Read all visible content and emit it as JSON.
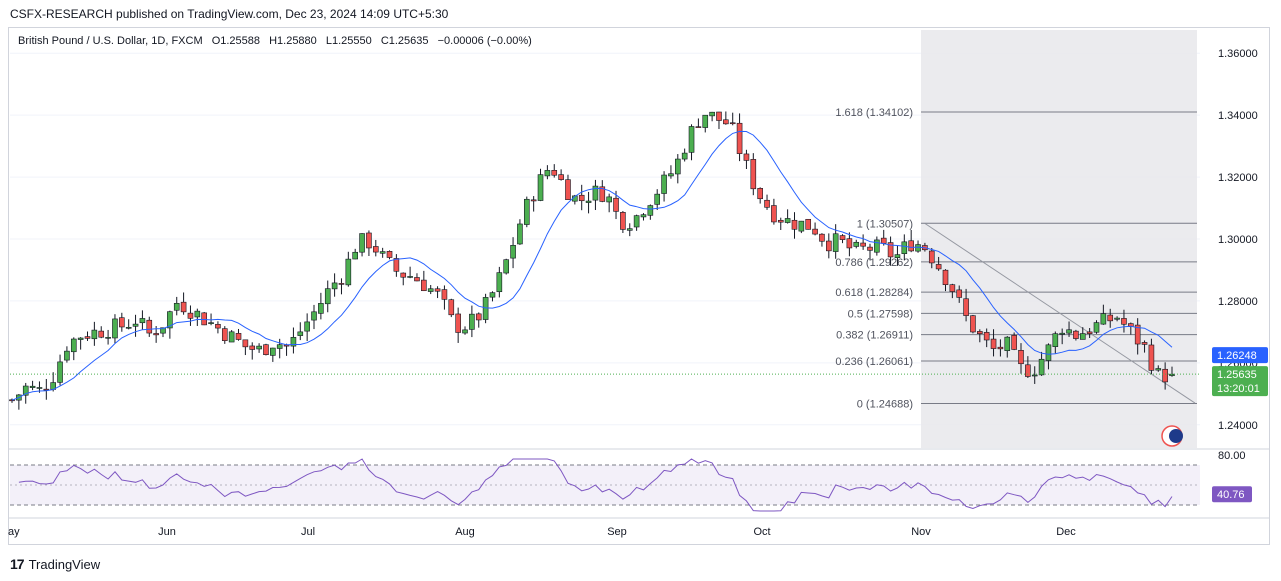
{
  "header": {
    "publisher": "CSFX-RESEARCH published on TradingView.com, Dec 23, 2024 14:09 UTC+5:30"
  },
  "legend": {
    "symbol": "British Pound / U.S. Dollar, 1D, FXCM",
    "open": "O1.25588",
    "high": "H1.25880",
    "low": "L1.25550",
    "close": "C1.25635",
    "change": "−0.00006 (−0.00%)"
  },
  "footer": {
    "brand": "TradingView"
  },
  "colors": {
    "up": "#26a69a",
    "up_body": "#4caf50",
    "down": "#ef5350",
    "ma": "#2962ff",
    "rsi": "#7e57c2",
    "fib": "#787b86",
    "current_price_bg": "#4caf50",
    "ma_tag_bg": "#2962ff"
  },
  "chart_data": [
    {
      "type": "candlestick",
      "ylim": [
        1.2325,
        1.3675
      ],
      "y_ticks": [
        "1.36000",
        "1.34000",
        "1.32000",
        "1.30000",
        "1.28000",
        "1.26000",
        "1.24000"
      ],
      "x_ticks": [
        "ay",
        "Jun",
        "Jul",
        "Aug",
        "Sep",
        "Oct",
        "Nov",
        "Dec"
      ],
      "close_path": [
        1.248,
        1.252,
        1.251,
        1.256,
        1.266,
        1.269,
        1.27,
        1.271,
        1.272,
        1.274,
        1.269,
        1.273,
        1.28,
        1.277,
        1.274,
        1.271,
        1.268,
        1.265,
        1.264,
        1.267,
        1.265,
        1.271,
        1.277,
        1.284,
        1.289,
        1.299,
        1.299,
        1.293,
        1.289,
        1.288,
        1.285,
        1.281,
        1.272,
        1.272,
        1.276,
        1.284,
        1.295,
        1.308,
        1.317,
        1.324,
        1.317,
        1.312,
        1.315,
        1.315,
        1.306,
        1.306,
        1.312,
        1.317,
        1.323,
        1.333,
        1.341,
        1.339,
        1.337,
        1.325,
        1.315,
        1.309,
        1.306,
        1.305,
        1.304,
        1.299,
        1.299,
        1.296,
        1.297,
        1.297,
        1.294,
        1.299,
        1.298,
        1.292,
        1.285,
        1.275,
        1.269,
        1.264,
        1.266,
        1.258,
        1.258,
        1.264,
        1.272,
        1.269,
        1.271,
        1.273,
        1.275,
        1.27,
        1.265,
        1.256,
        1.256
      ],
      "ma_label": "1.26248",
      "current_price": "1.25635",
      "countdown": "13:20:01",
      "fib_levels": [
        {
          "label": "1.618 (1.34102)",
          "price": 1.34102
        },
        {
          "label": "1 (1.30507)",
          "price": 1.30507
        },
        {
          "label": "0.786 (1.29262)",
          "price": 1.29262
        },
        {
          "label": "0.618 (1.28284)",
          "price": 1.28284
        },
        {
          "label": "0.5 (1.27598)",
          "price": 1.27598
        },
        {
          "label": "0.382 (1.26911)",
          "price": 1.26911
        },
        {
          "label": "0.236 (1.26061)",
          "price": 1.26061
        },
        {
          "label": "0 (1.24688)",
          "price": 1.24688
        }
      ]
    },
    {
      "type": "line",
      "name": "RSI",
      "ylim": [
        20,
        80
      ],
      "y_ticks": [
        "80.00"
      ],
      "current_value": "40.76",
      "bands": [
        70,
        30
      ]
    }
  ]
}
